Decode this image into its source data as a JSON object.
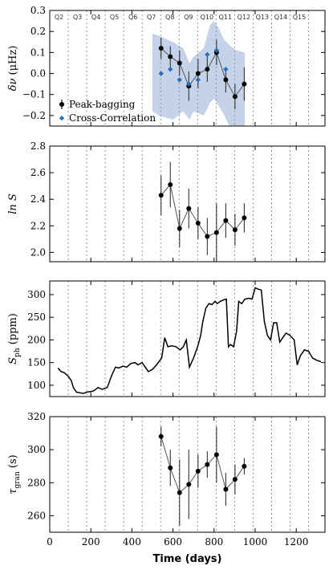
{
  "chart_data": [
    {
      "id": "dnu",
      "type": "scatter",
      "ylabel_main": "δν",
      "ylabel_unit": "(μHz)",
      "ylim": [
        -0.25,
        0.3
      ],
      "yticks": [
        -0.2,
        -0.1,
        0.0,
        0.1,
        0.2,
        0.3
      ],
      "ytick_labels": [
        "−0.2",
        "−0.1",
        "0.0",
        "0.1",
        "0.2",
        "0.3"
      ],
      "band": {
        "color": "#c5d3ea",
        "x": [
          500,
          530,
          600,
          650,
          680,
          700,
          750,
          780,
          800,
          820,
          850,
          880,
          910,
          950
        ],
        "upper": [
          0.19,
          0.18,
          0.15,
          0.12,
          0.05,
          0.08,
          0.12,
          0.23,
          0.25,
          0.22,
          0.16,
          0.13,
          0.11,
          0.1
        ],
        "lower": [
          -0.18,
          -0.2,
          -0.22,
          -0.18,
          -0.22,
          -0.18,
          -0.2,
          -0.14,
          -0.12,
          -0.15,
          -0.2,
          -0.26,
          -0.3,
          -0.28
        ]
      },
      "series": [
        {
          "name": "Peak-bagging",
          "marker": "circle",
          "color": "#000000",
          "line_color": "#555555",
          "x": [
            542,
            587,
            632,
            677,
            722,
            767,
            812,
            857,
            902,
            947
          ],
          "y": [
            0.12,
            0.08,
            0.05,
            -0.06,
            0.0,
            0.02,
            0.1,
            -0.03,
            -0.11,
            -0.05
          ],
          "err": [
            0.05,
            0.05,
            0.06,
            0.07,
            0.07,
            0.06,
            0.06,
            0.06,
            0.06,
            0.08
          ]
        },
        {
          "name": "Cross-Correlation",
          "marker": "diamond",
          "color": "#2a6ebb",
          "x": [
            542,
            587,
            632,
            677,
            722,
            767,
            812,
            857
          ],
          "y": [
            0.0,
            0.02,
            -0.03,
            -0.05,
            -0.03,
            0.09,
            0.11,
            0.02
          ]
        }
      ],
      "legend_position": "lower-left"
    },
    {
      "id": "lnS",
      "type": "scatter",
      "ylabel_main": "ln S",
      "ylim": [
        1.93,
        2.8
      ],
      "yticks": [
        2.0,
        2.2,
        2.4,
        2.6,
        2.8
      ],
      "ytick_labels": [
        "2.0",
        "2.2",
        "2.4",
        "2.6",
        "2.8"
      ],
      "series": [
        {
          "name": "Peak-bagging",
          "marker": "circle",
          "color": "#000000",
          "line_color": "#555555",
          "x": [
            542,
            587,
            632,
            677,
            722,
            767,
            812,
            857,
            902,
            947
          ],
          "y": [
            2.43,
            2.51,
            2.18,
            2.33,
            2.22,
            2.12,
            2.15,
            2.24,
            2.17,
            2.26
          ],
          "err": [
            0.15,
            0.17,
            0.14,
            0.15,
            0.12,
            0.14,
            0.22,
            0.13,
            0.12,
            0.11
          ]
        }
      ]
    },
    {
      "id": "sph",
      "type": "line",
      "ylabel_main": "S",
      "ylabel_sub": "ph",
      "ylabel_unit": "(ppm)",
      "ylim": [
        75,
        330
      ],
      "yticks": [
        100,
        150,
        200,
        250,
        300
      ],
      "ytick_labels": [
        "100",
        "150",
        "200",
        "250",
        "300"
      ],
      "series": [
        {
          "color": "#000000",
          "x": [
            40,
            55,
            70,
            90,
            105,
            115,
            130,
            150,
            165,
            180,
            200,
            215,
            235,
            255,
            280,
            300,
            320,
            335,
            355,
            375,
            395,
            415,
            430,
            450,
            465,
            480,
            500,
            520,
            545,
            560,
            575,
            595,
            615,
            635,
            650,
            665,
            680,
            700,
            720,
            735,
            745,
            760,
            775,
            790,
            805,
            815,
            830,
            845,
            860,
            870,
            880,
            895,
            910,
            920,
            935,
            950,
            970,
            985,
            1000,
            1015,
            1030,
            1045,
            1060,
            1075,
            1090,
            1105,
            1120,
            1135,
            1150,
            1170,
            1190,
            1205,
            1220,
            1240,
            1260,
            1280,
            1300,
            1320
          ],
          "y": [
            138,
            130,
            128,
            120,
            110,
            95,
            85,
            83,
            82,
            85,
            86,
            88,
            95,
            91,
            95,
            120,
            140,
            138,
            142,
            140,
            148,
            150,
            145,
            150,
            140,
            130,
            135,
            145,
            160,
            205,
            185,
            187,
            185,
            178,
            185,
            200,
            140,
            160,
            185,
            210,
            240,
            270,
            280,
            278,
            285,
            280,
            285,
            288,
            290,
            185,
            190,
            185,
            220,
            285,
            280,
            290,
            292,
            290,
            315,
            312,
            310,
            240,
            210,
            200,
            238,
            238,
            195,
            205,
            215,
            210,
            200,
            145,
            165,
            178,
            175,
            160,
            155,
            152
          ]
        }
      ]
    },
    {
      "id": "tau",
      "type": "scatter",
      "ylabel_main": "τ",
      "ylabel_sub": "gran",
      "ylabel_unit": "(s)",
      "ylim": [
        250,
        320
      ],
      "yticks": [
        260,
        280,
        300,
        320
      ],
      "ytick_labels": [
        "260",
        "280",
        "300",
        "320"
      ],
      "xlabel": "Time (days)",
      "xticks": [
        0,
        200,
        400,
        600,
        800,
        1000,
        1200
      ],
      "xtick_labels": [
        "0",
        "200",
        "400",
        "600",
        "800",
        "1000",
        "1200"
      ],
      "series": [
        {
          "name": "Peak-bagging",
          "marker": "circle",
          "color": "#000000",
          "line_color": "#555555",
          "x": [
            542,
            587,
            632,
            677,
            722,
            767,
            812,
            857,
            902,
            947
          ],
          "y": [
            308,
            289,
            274,
            279,
            287,
            291,
            297,
            276,
            282,
            290
          ],
          "err": [
            6,
            11,
            20,
            21,
            10,
            8,
            17,
            10,
            9,
            5
          ]
        }
      ]
    }
  ],
  "shared": {
    "xlim": [
      0,
      1340
    ],
    "quarter_boundaries": [
      90,
      180,
      270,
      360,
      450,
      540,
      630,
      720,
      810,
      900,
      990,
      1080,
      1170,
      1260
    ],
    "quarter_labels": [
      "Q2",
      "Q3",
      "Q4",
      "Q5",
      "Q6",
      "Q7",
      "Q8",
      "Q9",
      "Q10",
      "Q11",
      "Q12",
      "Q13",
      "Q14",
      "Q15"
    ],
    "quarter_label_x": [
      45,
      135,
      225,
      315,
      405,
      495,
      585,
      675,
      765,
      855,
      945,
      1035,
      1125,
      1215
    ]
  }
}
